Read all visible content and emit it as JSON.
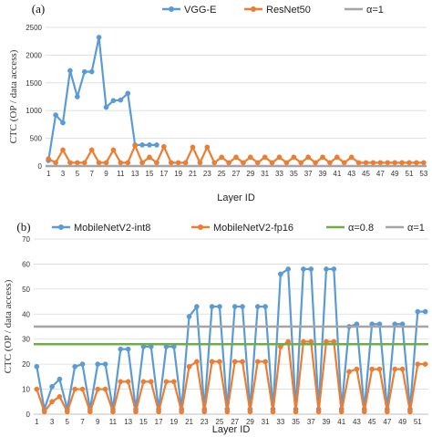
{
  "chart_data": [
    {
      "type": "line",
      "panel_label": "(a)",
      "xlabel": "Layer ID",
      "ylabel": "CTC (OP / data access)",
      "ylim": [
        0,
        2500
      ],
      "yticks": [
        0,
        500,
        1000,
        1500,
        2000,
        2500
      ],
      "x": [
        1,
        2,
        3,
        4,
        5,
        6,
        7,
        8,
        9,
        10,
        11,
        12,
        13,
        14,
        15,
        16,
        17,
        18,
        19,
        20,
        21,
        22,
        23,
        24,
        25,
        26,
        27,
        28,
        29,
        30,
        31,
        32,
        33,
        34,
        35,
        36,
        37,
        38,
        39,
        40,
        41,
        42,
        43,
        44,
        45,
        46,
        47,
        48,
        49,
        50,
        51,
        52,
        53
      ],
      "xticks": [
        1,
        3,
        5,
        7,
        9,
        11,
        13,
        15,
        17,
        19,
        21,
        23,
        25,
        27,
        29,
        31,
        33,
        35,
        37,
        39,
        41,
        43,
        45,
        47,
        49,
        51,
        53
      ],
      "grid": true,
      "legend_position": "top",
      "series": [
        {
          "name": "VGG-E",
          "color": "#5B9BD5",
          "marker": "circle",
          "x": [
            1,
            2,
            3,
            4,
            5,
            6,
            7,
            8,
            9,
            10,
            11,
            12,
            13,
            14,
            15,
            16
          ],
          "values": [
            100,
            920,
            780,
            1720,
            1250,
            1700,
            1700,
            2320,
            1060,
            1180,
            1190,
            1310,
            380,
            380,
            380,
            380
          ]
        },
        {
          "name": "ResNet50",
          "color": "#ED7D31",
          "marker": "circle",
          "x": [
            1,
            2,
            3,
            4,
            5,
            6,
            7,
            8,
            9,
            10,
            11,
            12,
            13,
            14,
            15,
            16,
            17,
            18,
            19,
            20,
            21,
            22,
            23,
            24,
            25,
            26,
            27,
            28,
            29,
            30,
            31,
            32,
            33,
            34,
            35,
            36,
            37,
            38,
            39,
            40,
            41,
            42,
            43,
            44,
            45,
            46,
            47,
            48,
            49,
            50,
            51,
            52,
            53
          ],
          "values": [
            130,
            60,
            290,
            60,
            60,
            60,
            290,
            60,
            60,
            290,
            60,
            60,
            370,
            60,
            160,
            60,
            350,
            60,
            60,
            60,
            340,
            60,
            340,
            60,
            160,
            60,
            160,
            60,
            160,
            60,
            160,
            60,
            160,
            60,
            160,
            60,
            160,
            60,
            160,
            60,
            160,
            60,
            160,
            60,
            60,
            60,
            60,
            60,
            60,
            60,
            60,
            60,
            60
          ]
        },
        {
          "name": "α=1",
          "color": "#A5A5A5",
          "marker": "none",
          "constant": 1
        }
      ]
    },
    {
      "type": "line",
      "panel_label": "(b)",
      "xlabel": "Layer ID",
      "ylabel": "CTC (OP / data access)",
      "ylim": [
        0,
        70
      ],
      "yticks": [
        0,
        10,
        20,
        30,
        40,
        50,
        60,
        70
      ],
      "xticks": [
        1,
        3,
        5,
        7,
        9,
        11,
        13,
        15,
        17,
        19,
        21,
        23,
        25,
        27,
        29,
        31,
        33,
        35,
        37,
        39,
        41,
        43,
        45,
        47,
        49,
        51
      ],
      "grid": true,
      "legend_position": "top",
      "series": [
        {
          "name": "MobileNetV2-int8",
          "color": "#5B9BD5",
          "marker": "circle",
          "x": [
            1,
            2,
            3,
            4,
            5,
            6,
            7,
            8,
            9,
            10,
            11,
            12,
            13,
            14,
            15,
            16,
            17,
            18,
            19,
            20,
            21,
            22,
            23,
            24,
            25,
            26,
            27,
            28,
            29,
            30,
            31,
            32,
            33,
            34,
            35,
            36,
            37,
            38,
            39,
            40,
            41,
            42,
            43,
            44,
            45,
            46,
            47,
            48,
            49,
            50,
            51,
            52
          ],
          "values": [
            19,
            2,
            11,
            14,
            2,
            19,
            20,
            2,
            20,
            20,
            2,
            26,
            26,
            2,
            27,
            27,
            2,
            27,
            27,
            2,
            39,
            43,
            2,
            43,
            43,
            2,
            43,
            43,
            2,
            43,
            43,
            2,
            56,
            58,
            2,
            58,
            58,
            2,
            58,
            58,
            2,
            35,
            36,
            2,
            36,
            36,
            2,
            36,
            36,
            2,
            41,
            41
          ]
        },
        {
          "name": "MobileNetV2-fp16",
          "color": "#ED7D31",
          "marker": "circle",
          "x": [
            1,
            2,
            3,
            4,
            5,
            6,
            7,
            8,
            9,
            10,
            11,
            12,
            13,
            14,
            15,
            16,
            17,
            18,
            19,
            20,
            21,
            22,
            23,
            24,
            25,
            26,
            27,
            28,
            29,
            30,
            31,
            32,
            33,
            34,
            35,
            36,
            37,
            38,
            39,
            40,
            41,
            42,
            43,
            44,
            45,
            46,
            47,
            48,
            49,
            50,
            51,
            52
          ],
          "values": [
            10,
            1,
            5,
            7,
            1,
            10,
            10,
            1,
            10,
            10,
            1,
            13,
            13,
            1,
            13,
            13,
            1,
            13,
            13,
            1,
            19,
            21,
            1,
            21,
            21,
            1,
            21,
            21,
            1,
            21,
            21,
            1,
            27,
            29,
            1,
            29,
            29,
            1,
            29,
            29,
            1,
            17,
            18,
            1,
            18,
            18,
            1,
            18,
            18,
            1,
            20,
            20
          ]
        },
        {
          "name": "α=0.8",
          "color": "#70AD47",
          "marker": "none",
          "constant": 28
        },
        {
          "name": "α=1",
          "color": "#A5A5A5",
          "marker": "none",
          "constant": 35
        }
      ]
    }
  ]
}
